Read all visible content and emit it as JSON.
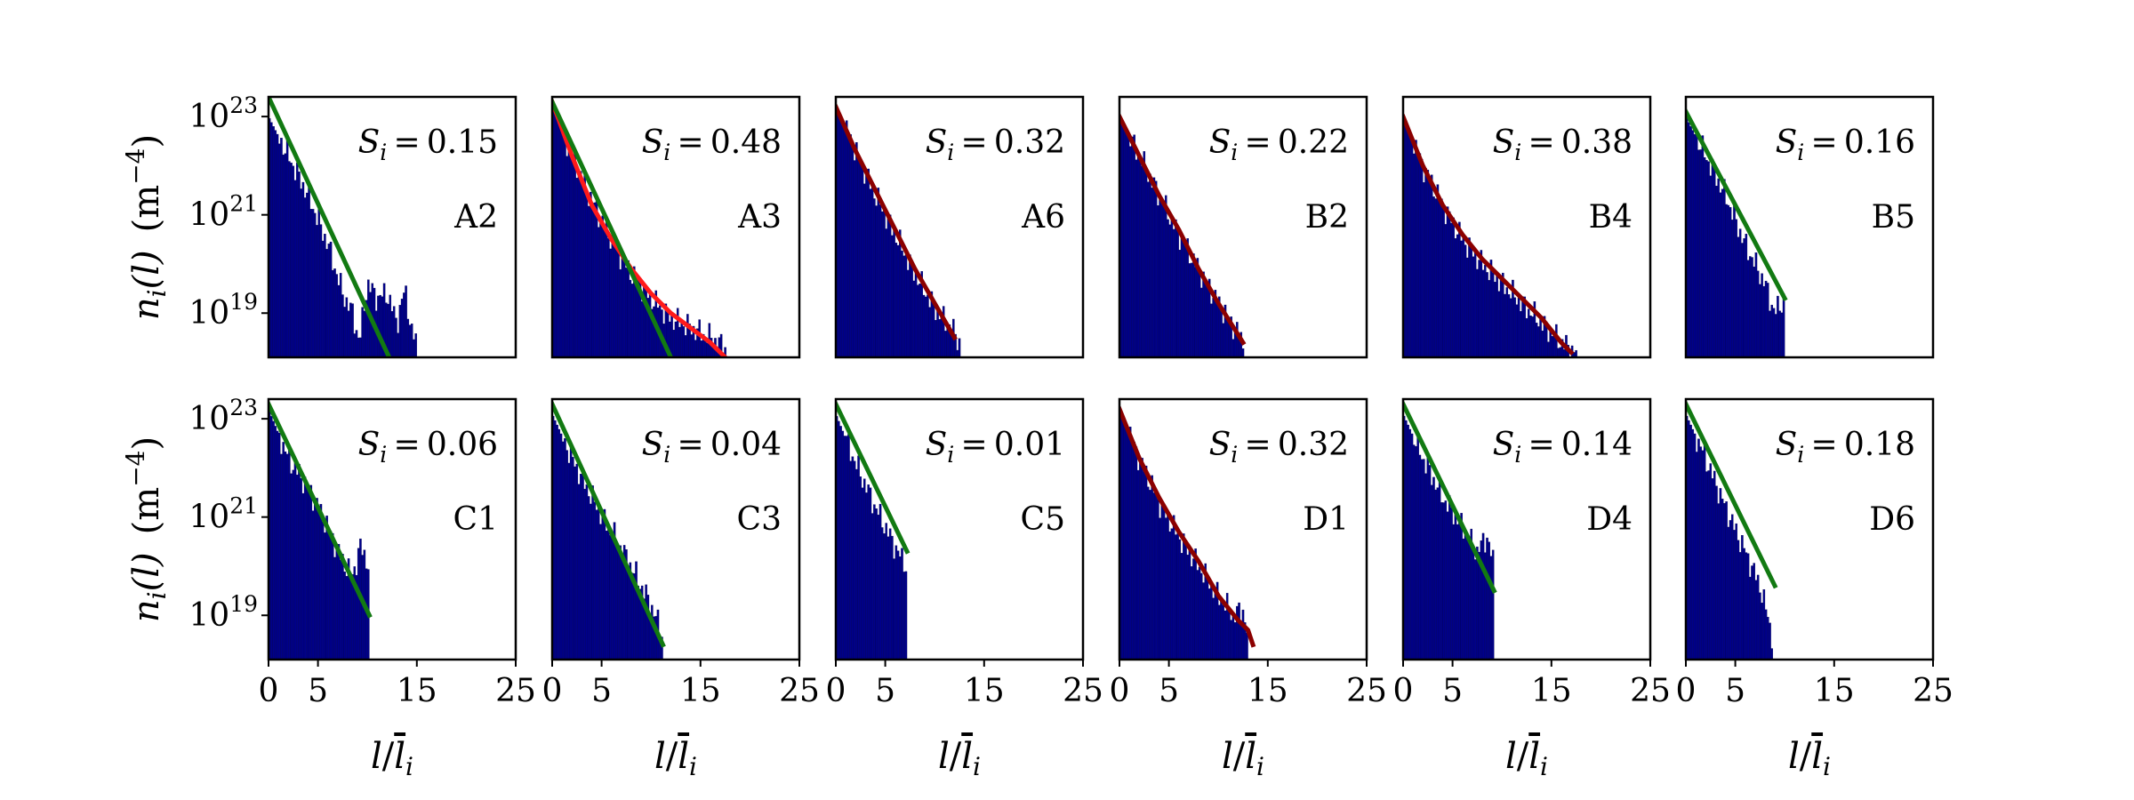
{
  "figure": {
    "ylabel_func": "n",
    "ylabel_sub": "i",
    "ylabel_arg": "(l)",
    "ylabel_unit": "(m",
    "ylabel_unit_exp": "−4",
    "ylabel_unit_close": ")",
    "xlabel_num": "l",
    "xlabel_den": "l",
    "xlabel_sub": "i",
    "s_symbol": "S",
    "s_sub": "i",
    "s_eq": "="
  },
  "colors": {
    "bars": "#00008b",
    "green_fit": "#127a12",
    "red_fit": "#ff1a1a",
    "darkred_fit": "#8b0000"
  },
  "chart_data": [
    {
      "type": "bar",
      "panel": "A2",
      "label": "A2",
      "s_value": "0.15",
      "xlim": [
        0,
        25
      ],
      "ylim_log10": [
        18.1,
        23.4
      ],
      "log_y": true,
      "xticks": [
        "0",
        "5",
        "15",
        "25"
      ],
      "yticks": [
        {
          "base": "10",
          "exp": "23"
        },
        {
          "base": "10",
          "exp": "21"
        },
        {
          "base": "10",
          "exp": "19"
        }
      ],
      "bars": {
        "x_max": 15.0,
        "log10_anchor_points": [
          [
            0,
            23.0
          ],
          [
            2,
            22.2
          ],
          [
            4,
            21.4
          ],
          [
            6,
            20.4
          ],
          [
            7.5,
            19.4
          ],
          [
            8.5,
            19.0
          ],
          [
            9.2,
            18.4
          ],
          [
            10,
            19.6
          ],
          [
            11,
            19.3
          ],
          [
            12,
            19.4
          ],
          [
            13,
            18.8
          ],
          [
            13.8,
            19.5
          ],
          [
            14.5,
            18.6
          ],
          [
            15.0,
            18.4
          ]
        ]
      },
      "fits": [
        {
          "color": "green",
          "log10_points": [
            [
              0,
              23.4
            ],
            [
              12.2,
              18.1
            ]
          ]
        }
      ]
    },
    {
      "type": "bar",
      "panel": "A3",
      "label": "A3",
      "s_value": "0.48",
      "xlim": [
        0,
        25
      ],
      "ylim_log10": [
        18.1,
        23.4
      ],
      "log_y": true,
      "xticks": [
        "0",
        "5",
        "15",
        "25"
      ],
      "yticks": [
        {
          "base": "10",
          "exp": "23"
        },
        {
          "base": "10",
          "exp": "21"
        },
        {
          "base": "10",
          "exp": "19"
        }
      ],
      "bars": {
        "x_max": 17.5,
        "log10_anchor_points": [
          [
            0,
            23.2
          ],
          [
            2,
            22.2
          ],
          [
            4,
            21.3
          ],
          [
            6,
            20.5
          ],
          [
            8,
            19.8
          ],
          [
            10,
            19.3
          ],
          [
            12,
            18.9
          ],
          [
            14,
            18.7
          ],
          [
            16,
            18.5
          ],
          [
            17.5,
            18.3
          ]
        ]
      },
      "fits": [
        {
          "color": "red",
          "log10_points": [
            [
              0,
              23.3
            ],
            [
              2,
              22.2
            ],
            [
              4,
              21.2
            ],
            [
              6,
              20.5
            ],
            [
              8,
              19.9
            ],
            [
              10,
              19.4
            ],
            [
              12,
              19.0
            ],
            [
              14,
              18.7
            ],
            [
              16,
              18.4
            ],
            [
              17.5,
              18.1
            ]
          ]
        },
        {
          "color": "green",
          "log10_points": [
            [
              0,
              23.3
            ],
            [
              12.0,
              18.1
            ]
          ]
        }
      ]
    },
    {
      "type": "bar",
      "panel": "A6",
      "label": "A6",
      "s_value": "0.32",
      "xlim": [
        0,
        25
      ],
      "ylim_log10": [
        18.1,
        23.4
      ],
      "log_y": true,
      "xticks": [
        "0",
        "5",
        "15",
        "25"
      ],
      "yticks": [
        {
          "base": "10",
          "exp": "23"
        },
        {
          "base": "10",
          "exp": "21"
        },
        {
          "base": "10",
          "exp": "19"
        }
      ],
      "bars": {
        "x_max": 12.5,
        "log10_anchor_points": [
          [
            0,
            23.2
          ],
          [
            2,
            22.3
          ],
          [
            4,
            21.4
          ],
          [
            6,
            20.6
          ],
          [
            8,
            19.8
          ],
          [
            10,
            19.1
          ],
          [
            12,
            18.6
          ],
          [
            12.5,
            18.4
          ]
        ]
      },
      "fits": [
        {
          "color": "darkred",
          "log10_points": [
            [
              0,
              23.2
            ],
            [
              2,
              22.3
            ],
            [
              4,
              21.5
            ],
            [
              6,
              20.7
            ],
            [
              8,
              19.9
            ],
            [
              10,
              19.2
            ],
            [
              12.0,
              18.5
            ]
          ]
        }
      ]
    },
    {
      "type": "bar",
      "panel": "B2",
      "label": "B2",
      "s_value": "0.22",
      "xlim": [
        0,
        25
      ],
      "ylim_log10": [
        18.1,
        23.4
      ],
      "log_y": true,
      "xticks": [
        "0",
        "5",
        "15",
        "25"
      ],
      "yticks": [
        {
          "base": "10",
          "exp": "23"
        },
        {
          "base": "10",
          "exp": "21"
        },
        {
          "base": "10",
          "exp": "19"
        }
      ],
      "bars": {
        "x_max": 12.5,
        "log10_anchor_points": [
          [
            0,
            23.0
          ],
          [
            2,
            22.2
          ],
          [
            4,
            21.4
          ],
          [
            6,
            20.6
          ],
          [
            8,
            19.9
          ],
          [
            10,
            19.2
          ],
          [
            12,
            18.6
          ],
          [
            12.5,
            18.4
          ]
        ]
      },
      "fits": [
        {
          "color": "darkred",
          "log10_points": [
            [
              0,
              23.0
            ],
            [
              2,
              22.2
            ],
            [
              4,
              21.4
            ],
            [
              6,
              20.7
            ],
            [
              8,
              19.9
            ],
            [
              10,
              19.2
            ],
            [
              12.5,
              18.4
            ]
          ]
        }
      ]
    },
    {
      "type": "bar",
      "panel": "B4",
      "label": "B4",
      "s_value": "0.38",
      "xlim": [
        0,
        25
      ],
      "ylim_log10": [
        18.1,
        23.4
      ],
      "log_y": true,
      "xticks": [
        "0",
        "5",
        "15",
        "25"
      ],
      "yticks": [
        {
          "base": "10",
          "exp": "23"
        },
        {
          "base": "10",
          "exp": "21"
        },
        {
          "base": "10",
          "exp": "19"
        }
      ],
      "bars": {
        "x_max": 17.5,
        "log10_anchor_points": [
          [
            0,
            23.0
          ],
          [
            2,
            22.0
          ],
          [
            4,
            21.2
          ],
          [
            6,
            20.5
          ],
          [
            8,
            20.0
          ],
          [
            10,
            19.6
          ],
          [
            12,
            19.2
          ],
          [
            14,
            18.8
          ],
          [
            16,
            18.4
          ],
          [
            17.5,
            18.2
          ]
        ]
      },
      "fits": [
        {
          "color": "darkred",
          "log10_points": [
            [
              0,
              23.0
            ],
            [
              2,
              22.0
            ],
            [
              4,
              21.2
            ],
            [
              6,
              20.6
            ],
            [
              8,
              20.1
            ],
            [
              10,
              19.7
            ],
            [
              12,
              19.3
            ],
            [
              14,
              18.9
            ],
            [
              16,
              18.4
            ],
            [
              17.0,
              18.2
            ]
          ]
        }
      ]
    },
    {
      "type": "bar",
      "panel": "B5",
      "label": "B5",
      "s_value": "0.16",
      "xlim": [
        0,
        25
      ],
      "ylim_log10": [
        18.1,
        23.4
      ],
      "log_y": true,
      "xticks": [
        "0",
        "5",
        "15",
        "25"
      ],
      "yticks": [
        {
          "base": "10",
          "exp": "23"
        },
        {
          "base": "10",
          "exp": "21"
        },
        {
          "base": "10",
          "exp": "19"
        }
      ],
      "bars": {
        "x_max": 10.0,
        "log10_anchor_points": [
          [
            0,
            23.0
          ],
          [
            2,
            22.2
          ],
          [
            4,
            21.4
          ],
          [
            6,
            20.4
          ],
          [
            8,
            19.6
          ],
          [
            9,
            19.0
          ],
          [
            10.0,
            19.3
          ]
        ]
      },
      "fits": [
        {
          "color": "green",
          "log10_points": [
            [
              0,
              23.1
            ],
            [
              10.0,
              19.3
            ]
          ]
        }
      ]
    },
    {
      "type": "bar",
      "panel": "C1",
      "label": "C1",
      "s_value": "0.06",
      "xlim": [
        0,
        25
      ],
      "ylim_log10": [
        18.1,
        23.4
      ],
      "log_y": true,
      "xticks": [
        "0",
        "5",
        "15",
        "25"
      ],
      "yticks": [
        {
          "base": "10",
          "exp": "23"
        },
        {
          "base": "10",
          "exp": "21"
        },
        {
          "base": "10",
          "exp": "19"
        }
      ],
      "bars": {
        "x_max": 10.2,
        "log10_anchor_points": [
          [
            0,
            23.2
          ],
          [
            2,
            22.2
          ],
          [
            4,
            21.6
          ],
          [
            6,
            20.8
          ],
          [
            7.5,
            20.1
          ],
          [
            8.5,
            19.8
          ],
          [
            9.3,
            20.4
          ],
          [
            10.2,
            20.0
          ]
        ]
      },
      "fits": [
        {
          "color": "green",
          "log10_points": [
            [
              0,
              23.3
            ],
            [
              10.2,
              19.0
            ]
          ]
        }
      ]
    },
    {
      "type": "bar",
      "panel": "C3",
      "label": "C3",
      "s_value": "0.04",
      "xlim": [
        0,
        25
      ],
      "ylim_log10": [
        18.1,
        23.4
      ],
      "log_y": true,
      "xticks": [
        "0",
        "5",
        "15",
        "25"
      ],
      "yticks": [
        {
          "base": "10",
          "exp": "23"
        },
        {
          "base": "10",
          "exp": "21"
        },
        {
          "base": "10",
          "exp": "19"
        }
      ],
      "bars": {
        "x_max": 11.2,
        "log10_anchor_points": [
          [
            0,
            23.1
          ],
          [
            2,
            22.2
          ],
          [
            4,
            21.4
          ],
          [
            6,
            20.7
          ],
          [
            8,
            20.0
          ],
          [
            10,
            19.2
          ],
          [
            11.2,
            18.6
          ]
        ]
      },
      "fits": [
        {
          "color": "green",
          "log10_points": [
            [
              0,
              23.3
            ],
            [
              11.2,
              18.4
            ]
          ]
        }
      ]
    },
    {
      "type": "bar",
      "panel": "C5",
      "label": "C5",
      "s_value": "0.01",
      "xlim": [
        0,
        25
      ],
      "ylim_log10": [
        18.1,
        23.4
      ],
      "log_y": true,
      "xticks": [
        "0",
        "5",
        "15",
        "25"
      ],
      "yticks": [
        {
          "base": "10",
          "exp": "23"
        },
        {
          "base": "10",
          "exp": "21"
        },
        {
          "base": "10",
          "exp": "19"
        }
      ],
      "bars": {
        "x_max": 7.2,
        "log10_anchor_points": [
          [
            0,
            23.1
          ],
          [
            2,
            22.1
          ],
          [
            4,
            21.2
          ],
          [
            5.5,
            20.6
          ],
          [
            6.5,
            20.2
          ],
          [
            7.2,
            20.0
          ]
        ]
      },
      "fits": [
        {
          "color": "green",
          "log10_points": [
            [
              0,
              23.3
            ],
            [
              7.2,
              20.3
            ]
          ]
        }
      ]
    },
    {
      "type": "bar",
      "panel": "D1",
      "label": "D1",
      "s_value": "0.32",
      "xlim": [
        0,
        25
      ],
      "ylim_log10": [
        18.1,
        23.4
      ],
      "log_y": true,
      "xticks": [
        "0",
        "5",
        "15",
        "25"
      ],
      "yticks": [
        {
          "base": "10",
          "exp": "23"
        },
        {
          "base": "10",
          "exp": "21"
        },
        {
          "base": "10",
          "exp": "19"
        }
      ],
      "bars": {
        "x_max": 13.0,
        "log10_anchor_points": [
          [
            0,
            23.2
          ],
          [
            2,
            22.2
          ],
          [
            4,
            21.3
          ],
          [
            6,
            20.6
          ],
          [
            8,
            20.0
          ],
          [
            10,
            19.4
          ],
          [
            11.5,
            19.0
          ],
          [
            12.5,
            19.1
          ],
          [
            13.0,
            18.6
          ]
        ]
      },
      "fits": [
        {
          "color": "darkred",
          "log10_points": [
            [
              0,
              23.2
            ],
            [
              2,
              22.2
            ],
            [
              4,
              21.4
            ],
            [
              6,
              20.7
            ],
            [
              8,
              20.1
            ],
            [
              10,
              19.4
            ],
            [
              12,
              18.9
            ],
            [
              13.0,
              18.7
            ],
            [
              13.5,
              18.4
            ]
          ]
        }
      ]
    },
    {
      "type": "bar",
      "panel": "D4",
      "label": "D4",
      "s_value": "0.14",
      "xlim": [
        0,
        25
      ],
      "ylim_log10": [
        18.1,
        23.4
      ],
      "log_y": true,
      "xticks": [
        "0",
        "5",
        "15",
        "25"
      ],
      "yticks": [
        {
          "base": "10",
          "exp": "23"
        },
        {
          "base": "10",
          "exp": "21"
        },
        {
          "base": "10",
          "exp": "19"
        }
      ],
      "bars": {
        "x_max": 9.2,
        "log10_anchor_points": [
          [
            0,
            23.1
          ],
          [
            2,
            22.2
          ],
          [
            4,
            21.4
          ],
          [
            6,
            20.8
          ],
          [
            7.5,
            20.3
          ],
          [
            8.5,
            20.6
          ],
          [
            9.2,
            20.0
          ]
        ]
      },
      "fits": [
        {
          "color": "green",
          "log10_points": [
            [
              0,
              23.3
            ],
            [
              9.2,
              19.5
            ]
          ]
        }
      ]
    },
    {
      "type": "bar",
      "panel": "D6",
      "label": "D6",
      "s_value": "0.18",
      "xlim": [
        0,
        25
      ],
      "ylim_log10": [
        18.1,
        23.4
      ],
      "log_y": true,
      "xticks": [
        "0",
        "5",
        "15",
        "25"
      ],
      "yticks": [
        {
          "base": "10",
          "exp": "23"
        },
        {
          "base": "10",
          "exp": "21"
        },
        {
          "base": "10",
          "exp": "19"
        }
      ],
      "bars": {
        "x_max": 8.8,
        "log10_anchor_points": [
          [
            0,
            23.1
          ],
          [
            2,
            22.2
          ],
          [
            4,
            21.2
          ],
          [
            6,
            20.3
          ],
          [
            7.5,
            19.6
          ],
          [
            8.5,
            18.8
          ],
          [
            8.8,
            18.5
          ]
        ]
      },
      "fits": [
        {
          "color": "green",
          "log10_points": [
            [
              0,
              23.3
            ],
            [
              9.0,
              19.6
            ]
          ]
        }
      ]
    }
  ]
}
